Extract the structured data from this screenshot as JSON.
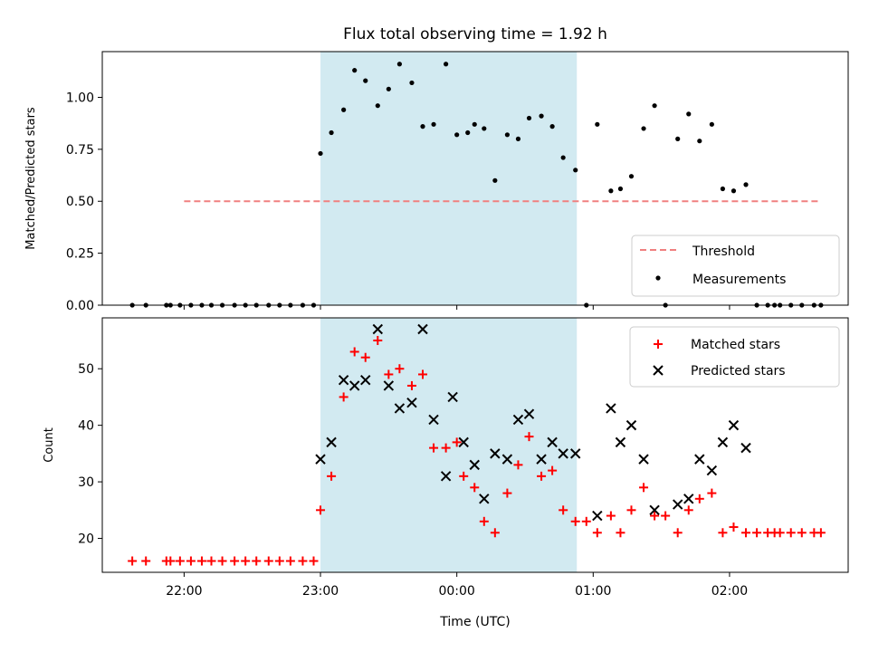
{
  "chart_data": [
    {
      "type": "scatter",
      "title": "Flux total observing time = 1.92 h",
      "xlabel": "",
      "ylabel": "Matched/Predicted stars",
      "ylim": [
        0,
        1.22
      ],
      "yticks": [
        "0.00",
        "0.25",
        "0.50",
        "0.75",
        "1.00"
      ],
      "xlim_hours": [
        21.4,
        26.87
      ],
      "xtick_hours": [
        22,
        23,
        24,
        25,
        26
      ],
      "shaded_span_hours": [
        23.0,
        24.88
      ],
      "shade_color": "#add8e6",
      "threshold": {
        "name": "Threshold",
        "value": 0.5,
        "x_start": 22.0,
        "x_end": 26.67,
        "color": "#f08080"
      },
      "series": [
        {
          "name": "Measurements",
          "color": "#000000",
          "x": [
            21.62,
            21.72,
            21.87,
            21.9,
            21.97,
            22.05,
            22.13,
            22.2,
            22.28,
            22.37,
            22.45,
            22.53,
            22.62,
            22.7,
            22.78,
            22.87,
            22.95,
            23.0,
            23.08,
            23.17,
            23.25,
            23.33,
            23.42,
            23.5,
            23.58,
            23.67,
            23.75,
            23.83,
            23.92,
            24.0,
            24.08,
            24.13,
            24.2,
            24.28,
            24.37,
            24.45,
            24.53,
            24.62,
            24.7,
            24.78,
            24.87,
            24.95,
            25.03,
            25.13,
            25.2,
            25.28,
            25.37,
            25.45,
            25.53,
            25.62,
            25.7,
            25.78,
            25.87,
            25.95,
            26.03,
            26.12,
            26.2,
            26.28,
            26.33,
            26.37,
            26.45,
            26.53,
            26.62,
            26.67
          ],
          "y": [
            0.0,
            0.0,
            0.0,
            0.0,
            0.0,
            0.0,
            0.0,
            0.0,
            0.0,
            0.0,
            0.0,
            0.0,
            0.0,
            0.0,
            0.0,
            0.0,
            0.0,
            0.73,
            0.83,
            0.94,
            1.13,
            1.08,
            0.96,
            1.04,
            1.16,
            1.07,
            0.86,
            0.87,
            1.16,
            0.82,
            0.83,
            0.87,
            0.85,
            0.6,
            0.82,
            0.8,
            0.9,
            0.91,
            0.86,
            0.71,
            0.65,
            0.0,
            0.87,
            0.55,
            0.56,
            0.62,
            0.85,
            0.96,
            0.0,
            0.8,
            0.92,
            0.79,
            0.87,
            0.56,
            0.55,
            0.58,
            0.0,
            0.0,
            0.0,
            0.0,
            0.0,
            0.0,
            0.0,
            0.0
          ]
        }
      ],
      "legend": {
        "location": "lower-right",
        "entries": [
          "Threshold",
          "Measurements"
        ]
      }
    },
    {
      "type": "scatter",
      "title": "",
      "xlabel": "Time (UTC)",
      "ylabel": "Count",
      "ylim": [
        14,
        59
      ],
      "yticks": [
        "20",
        "30",
        "40",
        "50"
      ],
      "xticks": [
        "22:00",
        "23:00",
        "00:00",
        "01:00",
        "02:00"
      ],
      "xlim_hours": [
        21.4,
        26.87
      ],
      "xtick_hours": [
        22,
        23,
        24,
        25,
        26
      ],
      "shaded_span_hours": [
        23.0,
        24.88
      ],
      "shade_color": "#add8e6",
      "series": [
        {
          "name": "Matched stars",
          "marker": "plus",
          "color": "#ff0000",
          "x": [
            21.62,
            21.72,
            21.87,
            21.9,
            21.97,
            22.05,
            22.13,
            22.2,
            22.28,
            22.37,
            22.45,
            22.53,
            22.62,
            22.7,
            22.78,
            22.87,
            22.95,
            23.0,
            23.08,
            23.17,
            23.25,
            23.33,
            23.42,
            23.5,
            23.58,
            23.67,
            23.75,
            23.83,
            23.92,
            24.0,
            24.05,
            24.13,
            24.2,
            24.28,
            24.37,
            24.45,
            24.53,
            24.62,
            24.7,
            24.78,
            24.87,
            24.95,
            25.03,
            25.13,
            25.2,
            25.28,
            25.37,
            25.45,
            25.53,
            25.62,
            25.7,
            25.78,
            25.87,
            25.95,
            26.03,
            26.12,
            26.2,
            26.28,
            26.33,
            26.37,
            26.45,
            26.53,
            26.62,
            26.67
          ],
          "y": [
            16,
            16,
            16,
            16,
            16,
            16,
            16,
            16,
            16,
            16,
            16,
            16,
            16,
            16,
            16,
            16,
            16,
            25,
            31,
            45,
            53,
            52,
            55,
            49,
            50,
            47,
            49,
            36,
            36,
            37,
            31,
            29,
            23,
            21,
            28,
            33,
            38,
            31,
            32,
            25,
            23,
            23,
            21,
            24,
            21,
            25,
            29,
            24,
            24,
            21,
            25,
            27,
            28,
            21,
            22,
            21,
            21,
            21,
            21,
            21,
            21,
            21,
            21,
            21
          ]
        },
        {
          "name": "Predicted stars",
          "marker": "x",
          "color": "#000000",
          "x": [
            23.0,
            23.08,
            23.17,
            23.25,
            23.33,
            23.42,
            23.5,
            23.58,
            23.67,
            23.75,
            23.83,
            23.92,
            23.97,
            24.05,
            24.13,
            24.2,
            24.28,
            24.37,
            24.45,
            24.53,
            24.62,
            24.7,
            24.78,
            24.87,
            25.03,
            25.13,
            25.2,
            25.28,
            25.37,
            25.45,
            25.62,
            25.7,
            25.78,
            25.87,
            25.95,
            26.03,
            26.12
          ],
          "y": [
            34,
            37,
            48,
            47,
            48,
            57,
            47,
            43,
            44,
            57,
            41,
            31,
            45,
            37,
            33,
            27,
            35,
            34,
            41,
            42,
            34,
            37,
            35,
            35,
            24,
            43,
            37,
            40,
            34,
            25,
            26,
            27,
            34,
            32,
            37,
            40,
            36
          ]
        }
      ],
      "legend": {
        "location": "top-right",
        "entries": [
          "Matched stars",
          "Predicted stars"
        ]
      }
    }
  ]
}
